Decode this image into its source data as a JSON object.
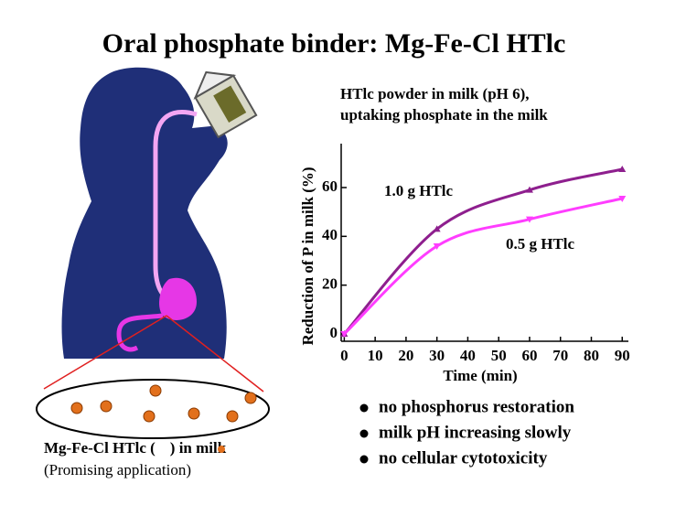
{
  "slide_title": "Oral phosphate binder: Mg-Fe-Cl HTlc",
  "caption_parts": [
    "Mg-Fe-Cl HTlc (",
    ") in milk"
  ],
  "caption_note": "(Promising application)",
  "bullets": [
    "no phosphorus restoration",
    "milk pH increasing slowly",
    "no cellular cytotoxicity"
  ],
  "chart_data": {
    "type": "line",
    "title_lines": [
      "HTlc powder in milk (pH 6),",
      "uptaking phosphate in the milk"
    ],
    "x_label": "Time (min)",
    "y_label": "Reduction of P in milk (%)",
    "x": [
      0,
      30,
      60,
      90
    ],
    "series": [
      {
        "name": "1.0 g HTlc",
        "color": "#8e1f8e",
        "marker": "triangle-up",
        "values": [
          0,
          43,
          59,
          67.5
        ]
      },
      {
        "name": "0.5 g HTlc",
        "color": "#ff3dff",
        "marker": "triangle-down",
        "values": [
          0,
          36,
          47,
          55.5
        ]
      }
    ],
    "xlim": [
      -1,
      92
    ],
    "xticks": [
      0,
      10,
      20,
      30,
      40,
      50,
      60,
      70,
      80,
      90
    ],
    "ylim": [
      -3,
      78
    ],
    "yticks": [
      0,
      20,
      40,
      60
    ]
  }
}
